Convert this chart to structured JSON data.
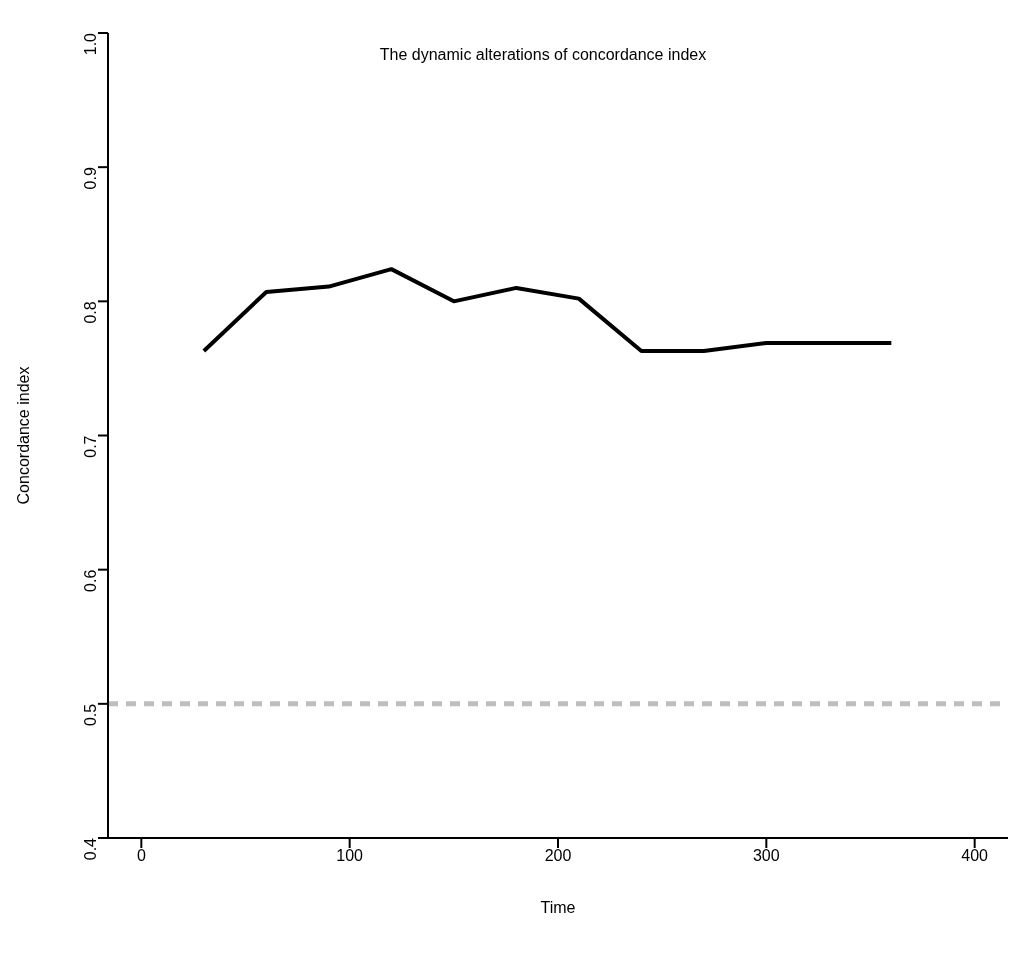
{
  "chart_data": {
    "type": "line",
    "title": "The dynamic alterations of concordance index",
    "xlabel": "Time",
    "ylabel": "Concordance index",
    "x": [
      30,
      60,
      90,
      120,
      150,
      180,
      210,
      240,
      270,
      300,
      330,
      360
    ],
    "series": [
      {
        "color": "#000000",
        "values": [
          0.763,
          0.807,
          0.811,
          0.824,
          0.8,
          0.81,
          0.802,
          0.763,
          0.763,
          0.769,
          0.769,
          0.769
        ]
      }
    ],
    "xlim": [
      -16,
      416
    ],
    "xticks": [
      0,
      100,
      200,
      300,
      400
    ],
    "ylim": [
      0.4,
      1.0
    ],
    "yticks": [
      0.4,
      0.5,
      0.6,
      0.7,
      0.8,
      0.9,
      {
        "value": 1,
        "label": "1.0"
      }
    ],
    "ref_lines": [
      {
        "axis": "y",
        "value": 0.5,
        "color": "#bebebe",
        "line_style": "dashed"
      }
    ],
    "grid": false,
    "legend": false,
    "marker": "none",
    "line_style": "solid"
  }
}
